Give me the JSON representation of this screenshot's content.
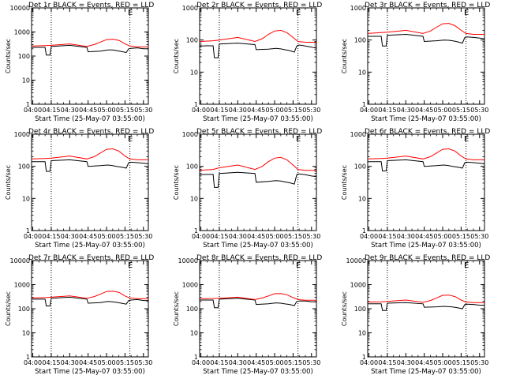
{
  "colors": {
    "events": "#000000",
    "lld": "#ff0000",
    "background": "#ffffff"
  },
  "common": {
    "xlabel": "Start Time (25-May-07 03:55:00)",
    "ylabel": "Counts/sec",
    "xtick_labels": [
      "04:00",
      "04:15",
      "04:30",
      "04:45",
      "05:00",
      "05:15",
      "05:30"
    ],
    "y_tick_labels_log": [
      "1",
      "10",
      "100",
      "1000",
      "10000"
    ],
    "marker_text": "E"
  },
  "chart_data": [
    {
      "type": "line",
      "title": "Det 1r BLACK = Events, RED = LLD",
      "xlabel": "Start Time (25-May-07 03:55:00)",
      "ylabel": "Counts/sec",
      "x_range": [
        "03:59",
        "05:34"
      ],
      "y_scale": "log",
      "ylim": [
        1,
        10000
      ],
      "grid": false,
      "vertical_markers": [
        "04:15",
        "05:19"
      ],
      "series": [
        {
          "name": "Events",
          "color": "#000000",
          "x": [
            "03:59",
            "04:05",
            "04:10",
            "04:11",
            "04:14",
            "04:15",
            "04:30",
            "04:44",
            "04:45",
            "04:55",
            "05:01",
            "05:05",
            "05:08",
            "05:12",
            "05:16",
            "05:18",
            "05:20",
            "05:25",
            "05:30",
            "05:34"
          ],
          "y": [
            230,
            230,
            230,
            110,
            110,
            250,
            280,
            230,
            150,
            160,
            180,
            180,
            170,
            155,
            140,
            200,
            210,
            220,
            200,
            200
          ]
        },
        {
          "name": "LLD",
          "color": "#ff0000",
          "x": [
            "03:59",
            "04:10",
            "04:15",
            "04:30",
            "04:44",
            "04:50",
            "04:55",
            "05:00",
            "05:05",
            "05:10",
            "05:15",
            "05:19",
            "05:25",
            "05:34"
          ],
          "y": [
            260,
            270,
            280,
            320,
            250,
            300,
            380,
            480,
            500,
            450,
            320,
            260,
            240,
            240
          ]
        }
      ]
    },
    {
      "type": "line",
      "title": "Det 2r BLACK = Events, RED = LLD",
      "xlabel": "Start Time (25-May-07 03:55:00)",
      "ylabel": "Counts/sec",
      "x_range": [
        "03:59",
        "05:34"
      ],
      "y_scale": "log",
      "ylim": [
        1,
        1000
      ],
      "grid": false,
      "vertical_markers": [
        "04:15",
        "05:19"
      ],
      "series": [
        {
          "name": "Events",
          "color": "#000000",
          "x": [
            "03:59",
            "04:05",
            "04:10",
            "04:11",
            "04:14",
            "04:15",
            "04:30",
            "04:44",
            "04:45",
            "04:55",
            "05:01",
            "05:05",
            "05:08",
            "05:12",
            "05:16",
            "05:18",
            "05:20",
            "05:25",
            "05:30",
            "05:34"
          ],
          "y": [
            65,
            66,
            66,
            28,
            28,
            75,
            80,
            72,
            50,
            52,
            55,
            53,
            50,
            47,
            42,
            65,
            70,
            65,
            60,
            55
          ]
        },
        {
          "name": "LLD",
          "color": "#ff0000",
          "x": [
            "03:59",
            "04:10",
            "04:15",
            "04:30",
            "04:44",
            "04:50",
            "04:55",
            "05:00",
            "05:05",
            "05:10",
            "05:15",
            "05:19",
            "05:25",
            "05:34"
          ],
          "y": [
            90,
            95,
            100,
            120,
            90,
            110,
            150,
            190,
            200,
            170,
            120,
            90,
            85,
            85
          ]
        }
      ]
    },
    {
      "type": "line",
      "title": "Det 3r BLACK = Events, RED = LLD",
      "xlabel": "Start Time (25-May-07 03:55:00)",
      "ylabel": "Counts/sec",
      "x_range": [
        "03:59",
        "05:34"
      ],
      "y_scale": "log",
      "ylim": [
        1,
        1000
      ],
      "grid": false,
      "vertical_markers": [
        "04:15",
        "05:19"
      ],
      "series": [
        {
          "name": "Events",
          "color": "#000000",
          "x": [
            "03:59",
            "04:05",
            "04:10",
            "04:11",
            "04:14",
            "04:15",
            "04:30",
            "04:44",
            "04:45",
            "04:55",
            "05:01",
            "05:05",
            "05:08",
            "05:12",
            "05:16",
            "05:18",
            "05:20",
            "05:25",
            "05:30",
            "05:34"
          ],
          "y": [
            130,
            130,
            130,
            65,
            65,
            140,
            150,
            130,
            90,
            95,
            100,
            98,
            95,
            88,
            80,
            120,
            125,
            120,
            115,
            110
          ]
        },
        {
          "name": "LLD",
          "color": "#ff0000",
          "x": [
            "03:59",
            "04:10",
            "04:15",
            "04:30",
            "04:44",
            "04:50",
            "04:55",
            "05:00",
            "05:05",
            "05:10",
            "05:15",
            "05:19",
            "05:25",
            "05:34"
          ],
          "y": [
            160,
            170,
            175,
            200,
            160,
            190,
            250,
            320,
            330,
            280,
            200,
            160,
            150,
            150
          ]
        }
      ]
    },
    {
      "type": "line",
      "title": "Det 4r BLACK = Events, RED = LLD",
      "xlabel": "Start Time (25-May-07 03:55:00)",
      "ylabel": "Counts/sec",
      "x_range": [
        "03:59",
        "05:34"
      ],
      "y_scale": "log",
      "ylim": [
        1,
        1000
      ],
      "grid": false,
      "vertical_markers": [
        "04:15",
        "05:19"
      ],
      "series": [
        {
          "name": "Events",
          "color": "#000000",
          "x": [
            "03:59",
            "04:05",
            "04:10",
            "04:11",
            "04:14",
            "04:15",
            "04:30",
            "04:44",
            "04:45",
            "04:55",
            "05:01",
            "05:05",
            "05:08",
            "05:12",
            "05:16",
            "05:18",
            "05:20",
            "05:25",
            "05:30",
            "05:34"
          ],
          "y": [
            140,
            140,
            140,
            70,
            70,
            150,
            160,
            140,
            100,
            105,
            110,
            105,
            100,
            95,
            88,
            130,
            135,
            130,
            125,
            120
          ]
        },
        {
          "name": "LLD",
          "color": "#ff0000",
          "x": [
            "03:59",
            "04:10",
            "04:15",
            "04:30",
            "04:44",
            "04:50",
            "04:55",
            "05:00",
            "05:05",
            "05:10",
            "05:15",
            "05:19",
            "05:25",
            "05:34"
          ],
          "y": [
            170,
            175,
            180,
            210,
            170,
            200,
            260,
            340,
            350,
            300,
            210,
            170,
            160,
            160
          ]
        }
      ]
    },
    {
      "type": "line",
      "title": "Det 5r BLACK = Events, RED = LLD",
      "xlabel": "Start Time (25-May-07 03:55:00)",
      "ylabel": "Counts/sec",
      "x_range": [
        "03:59",
        "05:34"
      ],
      "y_scale": "log",
      "ylim": [
        1,
        1000
      ],
      "grid": false,
      "vertical_markers": [
        "04:15",
        "05:19"
      ],
      "series": [
        {
          "name": "Events",
          "color": "#000000",
          "x": [
            "03:59",
            "04:05",
            "04:10",
            "04:11",
            "04:14",
            "04:15",
            "04:30",
            "04:44",
            "04:45",
            "04:55",
            "05:01",
            "05:05",
            "05:08",
            "05:12",
            "05:16",
            "05:18",
            "05:20",
            "05:25",
            "05:30",
            "05:34"
          ],
          "y": [
            55,
            56,
            56,
            22,
            22,
            60,
            65,
            60,
            32,
            34,
            36,
            35,
            33,
            31,
            28,
            55,
            58,
            55,
            50,
            48
          ]
        },
        {
          "name": "LLD",
          "color": "#ff0000",
          "x": [
            "03:59",
            "04:10",
            "04:15",
            "04:30",
            "04:44",
            "04:50",
            "04:55",
            "05:00",
            "05:05",
            "05:10",
            "05:15",
            "05:19",
            "05:25",
            "05:34"
          ],
          "y": [
            75,
            80,
            90,
            110,
            80,
            100,
            140,
            180,
            190,
            160,
            110,
            80,
            75,
            75
          ]
        }
      ]
    },
    {
      "type": "line",
      "title": "Det 6r BLACK = Events, RED = LLD",
      "xlabel": "Start Time (25-May-07 03:55:00)",
      "ylabel": "Counts/sec",
      "x_range": [
        "03:59",
        "05:34"
      ],
      "y_scale": "log",
      "ylim": [
        1,
        1000
      ],
      "grid": false,
      "vertical_markers": [
        "04:15",
        "05:19"
      ],
      "series": [
        {
          "name": "Events",
          "color": "#000000",
          "x": [
            "03:59",
            "04:05",
            "04:10",
            "04:11",
            "04:14",
            "04:15",
            "04:30",
            "04:44",
            "04:45",
            "04:55",
            "05:01",
            "05:05",
            "05:08",
            "05:12",
            "05:16",
            "05:18",
            "05:20",
            "05:25",
            "05:30",
            "05:34"
          ],
          "y": [
            140,
            140,
            140,
            72,
            72,
            150,
            160,
            140,
            100,
            105,
            110,
            105,
            100,
            95,
            88,
            130,
            135,
            130,
            125,
            120
          ]
        },
        {
          "name": "LLD",
          "color": "#ff0000",
          "x": [
            "03:59",
            "04:10",
            "04:15",
            "04:30",
            "04:44",
            "04:50",
            "04:55",
            "05:00",
            "05:05",
            "05:10",
            "05:15",
            "05:19",
            "05:25",
            "05:34"
          ],
          "y": [
            170,
            175,
            180,
            210,
            170,
            200,
            260,
            340,
            350,
            300,
            210,
            170,
            160,
            160
          ]
        }
      ]
    },
    {
      "type": "line",
      "title": "Det 7r BLACK = Events, RED = LLD",
      "xlabel": "Start Time (25-May-07 03:55:00)",
      "ylabel": "Counts/sec",
      "x_range": [
        "03:59",
        "05:34"
      ],
      "y_scale": "log",
      "ylim": [
        1,
        10000
      ],
      "grid": false,
      "vertical_markers": [
        "04:15",
        "05:19"
      ],
      "series": [
        {
          "name": "Events",
          "color": "#000000",
          "x": [
            "03:59",
            "04:05",
            "04:10",
            "04:11",
            "04:14",
            "04:15",
            "04:30",
            "04:44",
            "04:45",
            "04:55",
            "05:01",
            "05:05",
            "05:08",
            "05:12",
            "05:16",
            "05:18",
            "05:20",
            "05:25",
            "05:30",
            "05:34"
          ],
          "y": [
            250,
            250,
            250,
            130,
            130,
            270,
            300,
            250,
            170,
            180,
            200,
            195,
            185,
            170,
            155,
            220,
            230,
            240,
            220,
            220
          ]
        },
        {
          "name": "LLD",
          "color": "#ff0000",
          "x": [
            "03:59",
            "04:10",
            "04:15",
            "04:30",
            "04:44",
            "04:50",
            "04:55",
            "05:00",
            "05:05",
            "05:10",
            "05:15",
            "05:19",
            "05:25",
            "05:34"
          ],
          "y": [
            280,
            290,
            300,
            340,
            270,
            320,
            400,
            520,
            540,
            480,
            340,
            280,
            260,
            260
          ]
        }
      ]
    },
    {
      "type": "line",
      "title": "Det 8r BLACK = Events, RED = LLD",
      "xlabel": "Start Time (25-May-07 03:55:00)",
      "ylabel": "Counts/sec",
      "x_range": [
        "03:59",
        "05:34"
      ],
      "y_scale": "log",
      "ylim": [
        1,
        10000
      ],
      "grid": false,
      "vertical_markers": [
        "04:15",
        "05:19"
      ],
      "series": [
        {
          "name": "Events",
          "color": "#000000",
          "x": [
            "03:59",
            "04:05",
            "04:10",
            "04:11",
            "04:14",
            "04:15",
            "04:30",
            "04:44",
            "04:45",
            "04:55",
            "05:01",
            "05:05",
            "05:08",
            "05:12",
            "05:16",
            "05:18",
            "05:20",
            "05:25",
            "05:30",
            "05:34"
          ],
          "y": [
            230,
            230,
            230,
            110,
            110,
            250,
            270,
            230,
            150,
            160,
            175,
            170,
            160,
            150,
            135,
            200,
            210,
            210,
            195,
            195
          ]
        },
        {
          "name": "LLD",
          "color": "#ff0000",
          "x": [
            "03:59",
            "04:10",
            "04:15",
            "04:30",
            "04:44",
            "04:50",
            "04:55",
            "05:00",
            "05:05",
            "05:10",
            "05:15",
            "05:19",
            "05:25",
            "05:34"
          ],
          "y": [
            260,
            265,
            270,
            300,
            240,
            280,
            340,
            420,
            430,
            380,
            290,
            240,
            225,
            225
          ]
        }
      ]
    },
    {
      "type": "line",
      "title": "Det 9r BLACK = Events, RED = LLD",
      "xlabel": "Start Time (25-May-07 03:55:00)",
      "ylabel": "Counts/sec",
      "x_range": [
        "03:59",
        "05:34"
      ],
      "y_scale": "log",
      "ylim": [
        1,
        10000
      ],
      "grid": false,
      "vertical_markers": [
        "04:15",
        "05:19"
      ],
      "series": [
        {
          "name": "Events",
          "color": "#000000",
          "x": [
            "03:59",
            "04:05",
            "04:10",
            "04:11",
            "04:14",
            "04:15",
            "04:30",
            "04:44",
            "04:45",
            "04:55",
            "05:01",
            "05:05",
            "05:08",
            "05:12",
            "05:16",
            "05:18",
            "05:20",
            "05:25",
            "05:30",
            "05:34"
          ],
          "y": [
            160,
            160,
            160,
            85,
            85,
            170,
            180,
            160,
            115,
            120,
            125,
            122,
            118,
            110,
            100,
            150,
            155,
            150,
            140,
            140
          ]
        },
        {
          "name": "LLD",
          "color": "#ff0000",
          "x": [
            "03:59",
            "04:10",
            "04:15",
            "04:30",
            "04:44",
            "04:50",
            "04:55",
            "05:00",
            "05:05",
            "05:10",
            "05:15",
            "05:19",
            "05:25",
            "05:34"
          ],
          "y": [
            190,
            195,
            200,
            230,
            185,
            220,
            280,
            360,
            370,
            320,
            230,
            190,
            180,
            180
          ]
        }
      ]
    }
  ]
}
